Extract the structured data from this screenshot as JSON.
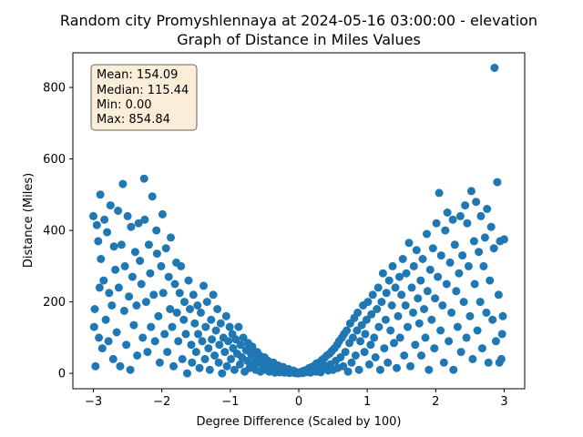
{
  "chart_data": {
    "type": "scatter",
    "title_line1": "Random city Promyshlennaya at 2024-05-16 03:00:00  - elevation",
    "title_line2": "Graph of Distance in Miles Values",
    "xlabel": "Degree Difference (Scaled by 100)",
    "ylabel": "Distance (Miles)",
    "xlim": [
      -3.3,
      3.3
    ],
    "ylim": [
      -43,
      897
    ],
    "xticks": [
      -3,
      -2,
      -1,
      0,
      1,
      2,
      3
    ],
    "yticks": [
      0,
      200,
      400,
      600,
      800
    ],
    "grid": false,
    "marker_color": "#1f77b4",
    "stats": {
      "mean": "Mean: 154.09",
      "median": "Median: 115.44",
      "min": "Min: 0.00",
      "max": "Max: 854.84"
    },
    "points": [
      [
        -3.0,
        440
      ],
      [
        -2.98,
        180
      ],
      [
        -2.97,
        20
      ],
      [
        -2.95,
        415
      ],
      [
        -2.93,
        370
      ],
      [
        -2.92,
        100
      ],
      [
        -2.9,
        500
      ],
      [
        -2.89,
        320
      ],
      [
        -2.87,
        70
      ],
      [
        -2.85,
        260
      ],
      [
        -2.84,
        430
      ],
      [
        -2.82,
        150
      ],
      [
        -2.8,
        395
      ],
      [
        -2.78,
        90
      ],
      [
        -2.77,
        225
      ],
      [
        -2.75,
        470
      ],
      [
        -2.73,
        190
      ],
      [
        -2.71,
        40
      ],
      [
        -2.7,
        355
      ],
      [
        -2.68,
        290
      ],
      [
        -2.66,
        115
      ],
      [
        -2.64,
        455
      ],
      [
        -2.63,
        240
      ],
      [
        -2.61,
        20
      ],
      [
        -2.59,
        360
      ],
      [
        -2.57,
        530
      ],
      [
        -2.55,
        175
      ],
      [
        -2.54,
        300
      ],
      [
        -2.52,
        80
      ],
      [
        -2.5,
        440
      ],
      [
        -2.48,
        215
      ],
      [
        -2.46,
        10
      ],
      [
        -2.45,
        410
      ],
      [
        -2.43,
        270
      ],
      [
        -2.41,
        135
      ],
      [
        -2.39,
        340
      ],
      [
        -2.37,
        190
      ],
      [
        -2.36,
        50
      ],
      [
        -2.34,
        420
      ],
      [
        -2.32,
        315
      ],
      [
        -2.3,
        250
      ],
      [
        -2.28,
        100
      ],
      [
        -2.26,
        545
      ],
      [
        -2.25,
        430
      ],
      [
        -2.23,
        200
      ],
      [
        -2.21,
        60
      ],
      [
        -2.19,
        360
      ],
      [
        -2.17,
        280
      ],
      [
        -2.16,
        130
      ],
      [
        -2.14,
        495
      ],
      [
        -2.12,
        220
      ],
      [
        -2.1,
        90
      ],
      [
        -2.08,
        400
      ],
      [
        -2.07,
        335
      ],
      [
        -2.05,
        160
      ],
      [
        -2.03,
        30
      ],
      [
        -2.01,
        300
      ],
      [
        -1.99,
        445
      ],
      [
        -1.98,
        225
      ],
      [
        -1.96,
        110
      ],
      [
        -1.94,
        350
      ],
      [
        -1.92,
        60
      ],
      [
        -1.9,
        270
      ],
      [
        -1.88,
        180
      ],
      [
        -1.87,
        380
      ],
      [
        -1.85,
        130
      ],
      [
        -1.83,
        20
      ],
      [
        -1.81,
        250
      ],
      [
        -1.79,
        310
      ],
      [
        -1.78,
        170
      ],
      [
        -1.76,
        90
      ],
      [
        -1.74,
        225
      ],
      [
        -1.72,
        300
      ],
      [
        -1.7,
        40
      ],
      [
        -1.68,
        150
      ],
      [
        -1.67,
        200
      ],
      [
        -1.65,
        110
      ],
      [
        -1.63,
        0
      ],
      [
        -1.61,
        260
      ],
      [
        -1.59,
        180
      ],
      [
        -1.57,
        80
      ],
      [
        -1.56,
        30
      ],
      [
        -1.54,
        220
      ],
      [
        -1.52,
        140
      ],
      [
        -1.5,
        60
      ],
      [
        -1.48,
        190
      ],
      [
        -1.47,
        110
      ],
      [
        -1.45,
        15
      ],
      [
        -1.43,
        170
      ],
      [
        -1.41,
        90
      ],
      [
        -1.39,
        245
      ],
      [
        -1.37,
        40
      ],
      [
        -1.36,
        130
      ],
      [
        -1.34,
        200
      ],
      [
        -1.32,
        70
      ],
      [
        -1.3,
        10
      ],
      [
        -1.28,
        150
      ],
      [
        -1.27,
        95
      ],
      [
        -1.25,
        220
      ],
      [
        -1.23,
        50
      ],
      [
        -1.21,
        120
      ],
      [
        -1.19,
        180
      ],
      [
        -1.17,
        30
      ],
      [
        -1.16,
        80
      ],
      [
        -1.14,
        140
      ],
      [
        -1.12,
        0
      ],
      [
        -1.1,
        100
      ],
      [
        -1.08,
        60
      ],
      [
        -1.06,
        160
      ],
      [
        -1.05,
        20
      ],
      [
        -1.03,
        90
      ],
      [
        -1.01,
        130
      ],
      [
        -0.99,
        40
      ],
      [
        -0.97,
        110
      ],
      [
        -0.96,
        70
      ],
      [
        -0.94,
        10
      ],
      [
        -0.92,
        95
      ],
      [
        -0.9,
        55
      ],
      [
        -0.88,
        130
      ],
      [
        -0.86,
        25
      ],
      [
        -0.85,
        80
      ],
      [
        -0.83,
        45
      ],
      [
        -0.81,
        100
      ],
      [
        -0.79,
        5
      ],
      [
        -0.77,
        65
      ],
      [
        -0.75,
        35
      ],
      [
        -0.74,
        85
      ],
      [
        -0.72,
        15
      ],
      [
        -0.7,
        55
      ],
      [
        -0.68,
        75
      ],
      [
        -0.66,
        25
      ],
      [
        -0.65,
        45
      ],
      [
        -0.63,
        10
      ],
      [
        -0.61,
        60
      ],
      [
        -0.59,
        30
      ],
      [
        -0.57,
        50
      ],
      [
        -0.56,
        5
      ],
      [
        -0.54,
        40
      ],
      [
        -0.52,
        20
      ],
      [
        -0.5,
        45
      ],
      [
        -0.48,
        10
      ],
      [
        -0.46,
        30
      ],
      [
        -0.45,
        35
      ],
      [
        -0.43,
        5
      ],
      [
        -0.41,
        25
      ],
      [
        -0.39,
        15
      ],
      [
        -0.37,
        30
      ],
      [
        -0.35,
        2
      ],
      [
        -0.34,
        20
      ],
      [
        -0.32,
        12
      ],
      [
        -0.3,
        22
      ],
      [
        -0.28,
        3
      ],
      [
        -0.26,
        15
      ],
      [
        -0.25,
        8
      ],
      [
        -0.23,
        18
      ],
      [
        -0.21,
        2
      ],
      [
        -0.19,
        10
      ],
      [
        -0.17,
        5
      ],
      [
        -0.15,
        12
      ],
      [
        -0.14,
        1
      ],
      [
        -0.12,
        6
      ],
      [
        -0.1,
        3
      ],
      [
        -0.08,
        8
      ],
      [
        -0.06,
        1
      ],
      [
        -0.04,
        4
      ],
      [
        -0.02,
        0
      ],
      [
        0.0,
        0
      ],
      [
        0.02,
        2
      ],
      [
        0.04,
        5
      ],
      [
        0.06,
        1
      ],
      [
        0.08,
        8
      ],
      [
        0.1,
        3
      ],
      [
        0.12,
        10
      ],
      [
        0.14,
        5
      ],
      [
        0.15,
        15
      ],
      [
        0.17,
        2
      ],
      [
        0.19,
        18
      ],
      [
        0.21,
        8
      ],
      [
        0.23,
        22
      ],
      [
        0.25,
        5
      ],
      [
        0.26,
        28
      ],
      [
        0.28,
        12
      ],
      [
        0.3,
        30
      ],
      [
        0.32,
        3
      ],
      [
        0.34,
        38
      ],
      [
        0.35,
        15
      ],
      [
        0.37,
        42
      ],
      [
        0.39,
        20
      ],
      [
        0.41,
        50
      ],
      [
        0.43,
        8
      ],
      [
        0.45,
        55
      ],
      [
        0.46,
        25
      ],
      [
        0.48,
        62
      ],
      [
        0.5,
        10
      ],
      [
        0.52,
        70
      ],
      [
        0.54,
        35
      ],
      [
        0.56,
        80
      ],
      [
        0.57,
        15
      ],
      [
        0.59,
        90
      ],
      [
        0.61,
        45
      ],
      [
        0.63,
        100
      ],
      [
        0.65,
        20
      ],
      [
        0.66,
        110
      ],
      [
        0.68,
        60
      ],
      [
        0.7,
        120
      ],
      [
        0.72,
        5
      ],
      [
        0.74,
        85
      ],
      [
        0.75,
        140
      ],
      [
        0.77,
        30
      ],
      [
        0.79,
        100
      ],
      [
        0.81,
        155
      ],
      [
        0.83,
        50
      ],
      [
        0.85,
        120
      ],
      [
        0.86,
        170
      ],
      [
        0.88,
        10
      ],
      [
        0.9,
        90
      ],
      [
        0.92,
        135
      ],
      [
        0.94,
        190
      ],
      [
        0.96,
        60
      ],
      [
        0.97,
        110
      ],
      [
        0.99,
        150
      ],
      [
        1.01,
        200
      ],
      [
        1.03,
        25
      ],
      [
        1.05,
        80
      ],
      [
        1.06,
        165
      ],
      [
        1.08,
        220
      ],
      [
        1.1,
        100
      ],
      [
        1.12,
        45
      ],
      [
        1.14,
        180
      ],
      [
        1.16,
        240
      ],
      [
        1.17,
        130
      ],
      [
        1.19,
        10
      ],
      [
        1.21,
        200
      ],
      [
        1.23,
        280
      ],
      [
        1.25,
        70
      ],
      [
        1.27,
        150
      ],
      [
        1.28,
        225
      ],
      [
        1.3,
        30
      ],
      [
        1.32,
        260
      ],
      [
        1.34,
        120
      ],
      [
        1.36,
        190
      ],
      [
        1.37,
        300
      ],
      [
        1.39,
        85
      ],
      [
        1.41,
        240
      ],
      [
        1.43,
        15
      ],
      [
        1.45,
        160
      ],
      [
        1.47,
        270
      ],
      [
        1.48,
        100
      ],
      [
        1.5,
        220
      ],
      [
        1.52,
        320
      ],
      [
        1.54,
        50
      ],
      [
        1.56,
        190
      ],
      [
        1.57,
        280
      ],
      [
        1.59,
        130
      ],
      [
        1.61,
        365
      ],
      [
        1.63,
        20
      ],
      [
        1.65,
        240
      ],
      [
        1.67,
        170
      ],
      [
        1.68,
        300
      ],
      [
        1.7,
        80
      ],
      [
        1.72,
        345
      ],
      [
        1.74,
        210
      ],
      [
        1.76,
        140
      ],
      [
        1.78,
        260
      ],
      [
        1.79,
        50
      ],
      [
        1.81,
        320
      ],
      [
        1.83,
        180
      ],
      [
        1.85,
        100
      ],
      [
        1.87,
        390
      ],
      [
        1.88,
        230
      ],
      [
        1.9,
        10
      ],
      [
        1.92,
        290
      ],
      [
        1.94,
        150
      ],
      [
        1.96,
        350
      ],
      [
        1.98,
        70
      ],
      [
        1.99,
        210
      ],
      [
        2.01,
        420
      ],
      [
        2.03,
        270
      ],
      [
        2.05,
        505
      ],
      [
        2.07,
        120
      ],
      [
        2.08,
        330
      ],
      [
        2.1,
        190
      ],
      [
        2.12,
        30
      ],
      [
        2.14,
        400
      ],
      [
        2.16,
        250
      ],
      [
        2.17,
        450
      ],
      [
        2.19,
        90
      ],
      [
        2.21,
        310
      ],
      [
        2.23,
        170
      ],
      [
        2.25,
        430
      ],
      [
        2.26,
        10
      ],
      [
        2.28,
        360
      ],
      [
        2.3,
        230
      ],
      [
        2.32,
        130
      ],
      [
        2.34,
        280
      ],
      [
        2.36,
        440
      ],
      [
        2.37,
        60
      ],
      [
        2.39,
        330
      ],
      [
        2.41,
        200
      ],
      [
        2.43,
        470
      ],
      [
        2.45,
        100
      ],
      [
        2.46,
        420
      ],
      [
        2.48,
        300
      ],
      [
        2.5,
        160
      ],
      [
        2.52,
        510
      ],
      [
        2.54,
        40
      ],
      [
        2.56,
        370
      ],
      [
        2.57,
        250
      ],
      [
        2.59,
        480
      ],
      [
        2.61,
        120
      ],
      [
        2.63,
        340
      ],
      [
        2.65,
        200
      ],
      [
        2.66,
        440
      ],
      [
        2.68,
        70
      ],
      [
        2.7,
        300
      ],
      [
        2.72,
        380
      ],
      [
        2.74,
        170
      ],
      [
        2.75,
        460
      ],
      [
        2.77,
        30
      ],
      [
        2.79,
        260
      ],
      [
        2.81,
        410
      ],
      [
        2.83,
        150
      ],
      [
        2.85,
        350
      ],
      [
        2.86,
        855
      ],
      [
        2.88,
        90
      ],
      [
        2.9,
        535
      ],
      [
        2.92,
        220
      ],
      [
        2.94,
        370
      ],
      [
        2.96,
        40
      ],
      [
        2.98,
        160
      ],
      [
        3.0,
        375
      ],
      [
        2.97,
        110
      ],
      [
        -2.99,
        130
      ],
      [
        -2.91,
        240
      ],
      [
        2.93,
        30
      ]
    ]
  }
}
